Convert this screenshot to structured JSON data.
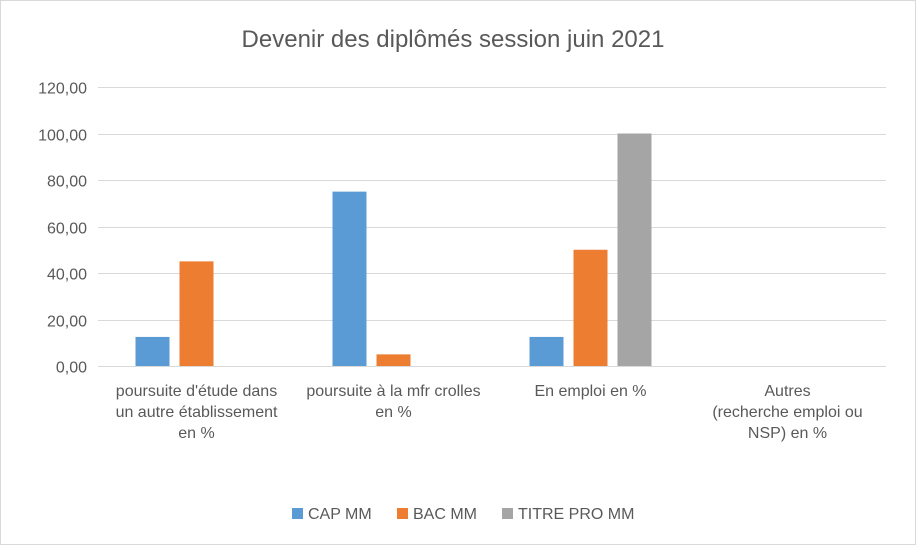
{
  "chart_data": {
    "type": "bar",
    "title": "Devenir des diplômés session juin 2021",
    "categories": [
      [
        "poursuite d'étude dans",
        "un autre établissement",
        "en %"
      ],
      [
        "poursuite à la mfr crolles",
        "en %"
      ],
      [
        "En emploi en %"
      ],
      [
        "Autres",
        "(recherche emploi ou",
        "NSP) en %"
      ]
    ],
    "series": [
      {
        "name": "CAP MM",
        "color": "#5b9bd5",
        "values": [
          12.5,
          75,
          12.5,
          0
        ]
      },
      {
        "name": "BAC MM",
        "color": "#ed7d31",
        "values": [
          45,
          5,
          50,
          0
        ]
      },
      {
        "name": "TITRE PRO MM",
        "color": "#a5a5a5",
        "values": [
          0,
          0,
          100,
          0
        ]
      }
    ],
    "ylim": [
      0,
      120
    ],
    "yticks": [
      "0,00",
      "20,00",
      "40,00",
      "60,00",
      "80,00",
      "100,00",
      "120,00"
    ],
    "grid": true,
    "legend": "bottom"
  }
}
